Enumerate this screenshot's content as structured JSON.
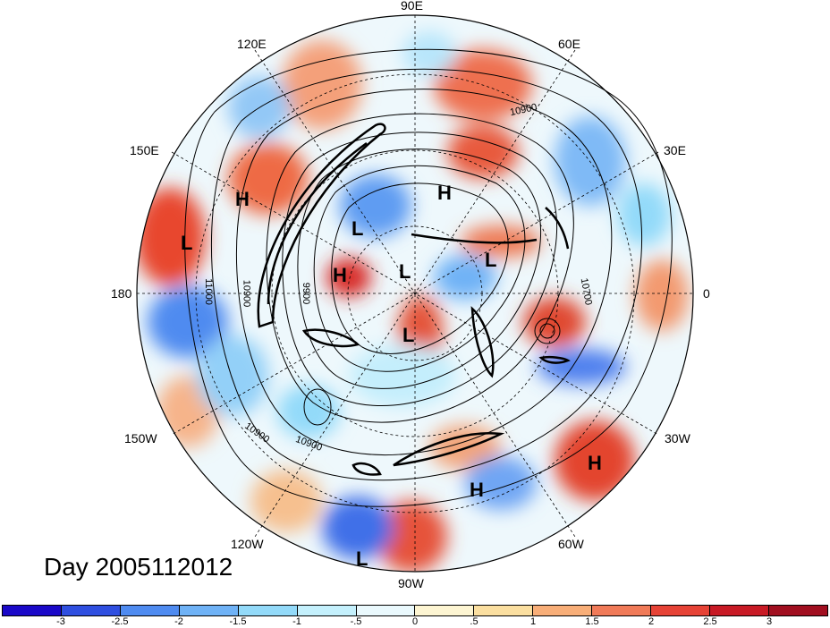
{
  "title": "Day 2005112012",
  "longitude_labels": [
    "90E",
    "120E",
    "60E",
    "150E",
    "30E",
    "180",
    "0",
    "150W",
    "30W",
    "120W",
    "60W",
    "90W"
  ],
  "pressure_centers": [
    "H",
    "L",
    "L",
    "H",
    "H",
    "L",
    "L",
    "L",
    "H",
    "H",
    "L"
  ],
  "contour_labels": [
    "10900",
    "11000",
    "10900",
    "9900",
    "10700",
    "10900",
    "10900"
  ],
  "colorbar": {
    "colors": [
      "#1a08c8",
      "#2f4fe0",
      "#4f8bf0",
      "#6fb2f6",
      "#93daf9",
      "#c4f0fc",
      "#eaf9fd",
      "#fdf5d2",
      "#fbdfa0",
      "#f8ae78",
      "#f07a58",
      "#e64336",
      "#c81a25",
      "#a10f20"
    ],
    "tick_labels": [
      "-3",
      "-2.5",
      "-2",
      "-1.5",
      "-1",
      "-.5",
      "0",
      ".5",
      "1",
      "1.5",
      "2",
      "2.5",
      "3"
    ]
  }
}
